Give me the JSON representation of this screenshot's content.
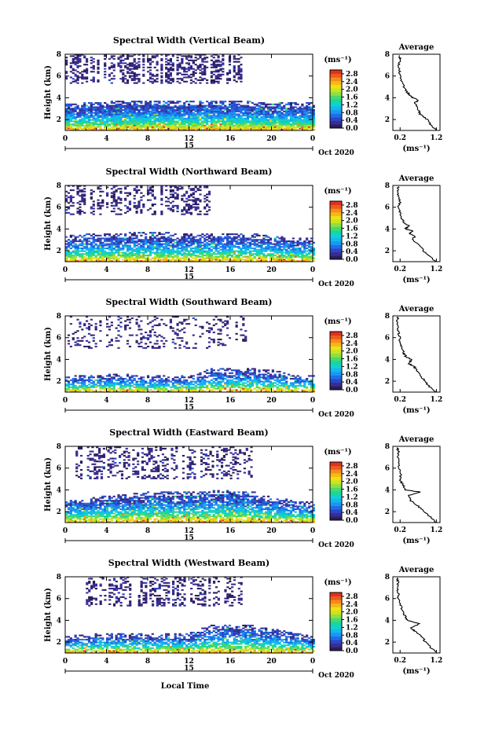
{
  "colors": {
    "scale": [
      "#2b1d5c",
      "#3b2c8e",
      "#2a47c9",
      "#1f6ee8",
      "#1a98f0",
      "#13b9ee",
      "#10d2d2",
      "#18d6a0",
      "#49d86a",
      "#8ee043",
      "#c7e61f",
      "#f1df14",
      "#f7b816",
      "#f68c19",
      "#ef5a1e",
      "#e0321c"
    ]
  },
  "shared": {
    "xlabel": "Local Time",
    "date_label": "Oct 2020",
    "date_marker": "15",
    "colorbar_unit": "(ms⁻¹)",
    "avg_title": "Average",
    "avg_xlabel": "(ms⁻¹)"
  },
  "chart_data": [
    {
      "type": "heatmap",
      "title": "Spectral Width (Vertical Beam)",
      "ylabel": "Height (km)",
      "xlim": [
        0,
        24
      ],
      "ylim": [
        1,
        8
      ],
      "xticks": [
        "0",
        "4",
        "8",
        "12",
        "16",
        "20",
        "0"
      ],
      "yticks": [
        "2",
        "4",
        "6",
        "8"
      ],
      "colorbar_ticks": [
        "0.0",
        "0.4",
        "0.8",
        "1.2",
        "1.6",
        "2.0",
        "2.4",
        "2.8"
      ],
      "colorbar_range": [
        0,
        3.0
      ],
      "upper_layer": {
        "x": [
          0,
          17
        ],
        "y": [
          5.3,
          7.9
        ],
        "density": 0.45
      },
      "lower_layer": {
        "x": [
          0,
          24
        ],
        "y": [
          1.0,
          3.7
        ],
        "density": 0.92,
        "top_profile": [
          3.4,
          3.5,
          3.6,
          3.7,
          3.7,
          3.6,
          3.6,
          3.7,
          3.7,
          3.6,
          3.5,
          3.5,
          3.5
        ]
      },
      "average_profile": {
        "xticks": [
          "0.2",
          "1.2"
        ],
        "xlim": [
          0,
          1.3
        ],
        "ylim": [
          1,
          8
        ],
        "yticks": [
          "2",
          "4",
          "6",
          "8"
        ],
        "height_km": [
          1.0,
          1.5,
          2.0,
          2.5,
          3.0,
          3.5,
          3.8,
          4.0,
          4.3,
          4.5,
          5.0,
          5.5,
          6.0,
          6.5,
          7.0,
          7.5,
          7.9
        ],
        "width": [
          1.2,
          1.05,
          0.95,
          0.75,
          0.7,
          0.6,
          0.7,
          0.55,
          0.45,
          0.4,
          0.3,
          0.25,
          0.2,
          0.18,
          0.15,
          0.2,
          0.18
        ]
      }
    },
    {
      "type": "heatmap",
      "title": "Spectral Width (Northward Beam)",
      "ylabel": "Height (km)",
      "xlim": [
        0,
        24
      ],
      "ylim": [
        1,
        8
      ],
      "xticks": [
        "0",
        "4",
        "8",
        "12",
        "16",
        "20",
        "0"
      ],
      "yticks": [
        "2",
        "4",
        "6",
        "8"
      ],
      "colorbar_ticks": [
        "0.0",
        "0.4",
        "0.8",
        "1.2",
        "1.6",
        "2.0",
        "2.4",
        "2.8"
      ],
      "colorbar_range": [
        0,
        3.0
      ],
      "upper_layer": {
        "x": [
          0,
          14
        ],
        "y": [
          5.3,
          7.9
        ],
        "density": 0.35
      },
      "lower_layer": {
        "x": [
          0,
          24
        ],
        "y": [
          1.0,
          3.6
        ],
        "density": 0.8,
        "top_profile": [
          3.3,
          3.5,
          3.5,
          3.6,
          3.6,
          3.6,
          3.5,
          3.5,
          3.6,
          3.5,
          3.4,
          3.2,
          3.2
        ]
      },
      "average_profile": {
        "xticks": [
          "0.2",
          "1.2"
        ],
        "xlim": [
          0,
          1.3
        ],
        "ylim": [
          1,
          8
        ],
        "yticks": [
          "2",
          "4",
          "6",
          "8"
        ],
        "height_km": [
          1.0,
          1.5,
          2.0,
          2.5,
          3.0,
          3.3,
          3.6,
          3.8,
          4.0,
          4.3,
          4.6,
          5.0,
          5.5,
          6.0,
          6.5,
          7.0,
          7.5,
          7.9
        ],
        "width": [
          1.2,
          1.0,
          0.85,
          0.75,
          0.55,
          0.6,
          0.45,
          0.55,
          0.35,
          0.45,
          0.3,
          0.25,
          0.2,
          0.15,
          0.2,
          0.15,
          0.12,
          0.15
        ]
      }
    },
    {
      "type": "heatmap",
      "title": "Spectral Width (Southward Beam)",
      "ylabel": "Height (km)",
      "xlim": [
        0,
        24
      ],
      "ylim": [
        1,
        8
      ],
      "xticks": [
        "0",
        "4",
        "8",
        "12",
        "16",
        "20",
        "0"
      ],
      "yticks": [
        "2",
        "4",
        "6",
        "8"
      ],
      "colorbar_ticks": [
        "0.0",
        "0.4",
        "0.8",
        "1.2",
        "1.6",
        "2.0",
        "2.4",
        "2.8"
      ],
      "colorbar_range": [
        0,
        3.0
      ],
      "upper_layer": {
        "x": [
          0,
          18
        ],
        "y": [
          5.0,
          7.9
        ],
        "density": 0.2
      },
      "lower_layer": {
        "x": [
          0,
          24
        ],
        "y": [
          1.0,
          3.2
        ],
        "density": 0.72,
        "top_profile": [
          2.4,
          2.5,
          2.6,
          2.6,
          2.5,
          2.5,
          2.4,
          3.1,
          3.2,
          3.2,
          3.0,
          2.6,
          2.5
        ]
      },
      "average_profile": {
        "xticks": [
          "0.2",
          "1.2"
        ],
        "xlim": [
          0,
          1.3
        ],
        "ylim": [
          1,
          8
        ],
        "yticks": [
          "2",
          "4",
          "6",
          "8"
        ],
        "height_km": [
          1.0,
          1.5,
          2.0,
          2.5,
          3.0,
          3.3,
          3.6,
          4.0,
          4.3,
          4.6,
          5.0,
          5.5,
          6.0,
          6.5,
          7.0,
          7.5,
          7.9
        ],
        "width": [
          1.2,
          1.0,
          0.9,
          0.75,
          0.65,
          0.6,
          0.45,
          0.5,
          0.35,
          0.3,
          0.25,
          0.2,
          0.2,
          0.15,
          0.15,
          0.12,
          0.15
        ]
      }
    },
    {
      "type": "heatmap",
      "title": "Spectral Width (Eastward Beam)",
      "ylabel": "Height (km)",
      "xlim": [
        0,
        24
      ],
      "ylim": [
        1,
        8
      ],
      "xticks": [
        "0",
        "4",
        "8",
        "12",
        "16",
        "20",
        "0"
      ],
      "yticks": [
        "2",
        "4",
        "6",
        "8"
      ],
      "colorbar_ticks": [
        "0.0",
        "0.4",
        "0.8",
        "1.2",
        "1.6",
        "2.0",
        "2.4",
        "2.8"
      ],
      "colorbar_range": [
        0,
        3.0
      ],
      "upper_layer": {
        "x": [
          1,
          18
        ],
        "y": [
          5.0,
          7.9
        ],
        "density": 0.3
      },
      "lower_layer": {
        "x": [
          0,
          24
        ],
        "y": [
          1.0,
          3.9
        ],
        "density": 0.82,
        "top_profile": [
          3.0,
          3.2,
          3.4,
          3.6,
          3.8,
          3.8,
          3.8,
          3.9,
          3.9,
          3.8,
          3.3,
          3.0,
          2.8
        ]
      },
      "average_profile": {
        "xticks": [
          "0.2",
          "1.2"
        ],
        "xlim": [
          0,
          1.3
        ],
        "ylim": [
          1,
          8
        ],
        "yticks": [
          "2",
          "4",
          "6",
          "8"
        ],
        "height_km": [
          1.0,
          1.5,
          2.0,
          2.5,
          3.0,
          3.5,
          3.8,
          4.0,
          4.3,
          4.6,
          5.0,
          5.5,
          6.0,
          6.5,
          7.0,
          7.5,
          7.9
        ],
        "width": [
          1.2,
          1.05,
          0.85,
          0.7,
          0.5,
          0.45,
          0.75,
          0.35,
          0.3,
          0.25,
          0.2,
          0.22,
          0.15,
          0.18,
          0.12,
          0.15,
          0.12
        ]
      }
    },
    {
      "type": "heatmap",
      "title": "Spectral Width (Westward Beam)",
      "ylabel": "Height (km)",
      "xlim": [
        0,
        24
      ],
      "ylim": [
        1,
        8
      ],
      "xticks": [
        "0",
        "4",
        "8",
        "12",
        "16",
        "20",
        "0"
      ],
      "yticks": [
        "2",
        "4",
        "6",
        "8"
      ],
      "colorbar_ticks": [
        "0.0",
        "0.4",
        "0.8",
        "1.2",
        "1.6",
        "2.0",
        "2.4",
        "2.8"
      ],
      "colorbar_range": [
        0,
        3.0
      ],
      "upper_layer": {
        "x": [
          2,
          17
        ],
        "y": [
          5.3,
          7.9
        ],
        "density": 0.35
      },
      "lower_layer": {
        "x": [
          0,
          24
        ],
        "y": [
          1.0,
          3.6
        ],
        "density": 0.75,
        "top_profile": [
          2.6,
          2.7,
          2.8,
          2.8,
          2.8,
          2.8,
          2.8,
          3.5,
          3.6,
          3.5,
          3.2,
          2.8,
          2.6
        ]
      },
      "average_profile": {
        "xticks": [
          "0.2",
          "1.2"
        ],
        "xlim": [
          0,
          1.3
        ],
        "ylim": [
          1,
          8
        ],
        "yticks": [
          "2",
          "4",
          "6",
          "8"
        ],
        "height_km": [
          1.0,
          1.5,
          2.0,
          2.5,
          3.0,
          3.3,
          3.7,
          4.0,
          4.3,
          4.6,
          5.0,
          5.5,
          6.0,
          6.5,
          7.0,
          7.5,
          7.9
        ],
        "width": [
          1.2,
          1.05,
          0.9,
          0.8,
          0.6,
          0.5,
          0.75,
          0.4,
          0.35,
          0.3,
          0.25,
          0.2,
          0.15,
          0.15,
          0.12,
          0.15,
          0.12
        ]
      }
    }
  ]
}
